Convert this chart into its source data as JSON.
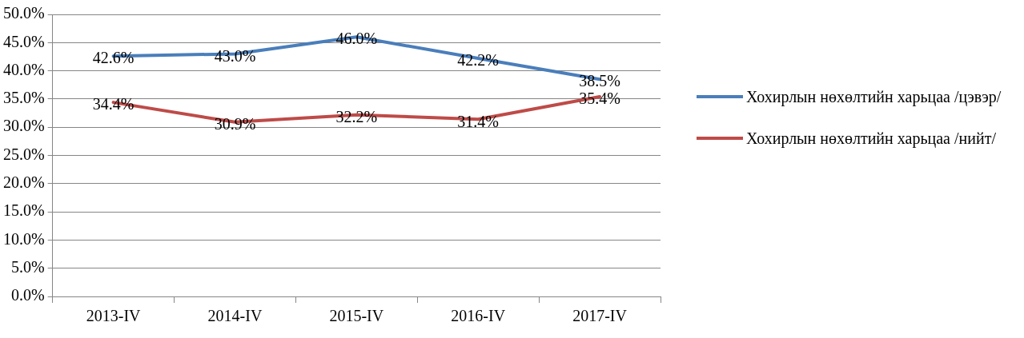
{
  "chart_data": {
    "type": "line",
    "categories": [
      "2013-IV",
      "2014-IV",
      "2015-IV",
      "2016-IV",
      "2017-IV"
    ],
    "series": [
      {
        "name": "Хохирлын нөхөлтийн харьцаа /цэвэр/",
        "color": "#4a7ebb",
        "values": [
          42.6,
          43.0,
          46.0,
          42.2,
          38.5
        ],
        "value_labels": [
          "42.6%",
          "43.0%",
          "46.0%",
          "42.2%",
          "38.5%"
        ]
      },
      {
        "name": "Хохирлын нөхөлтийн харьцаа /нийт/",
        "color": "#be4b48",
        "values": [
          34.4,
          30.9,
          32.2,
          31.4,
          35.4
        ],
        "value_labels": [
          "34.4%",
          "30.9%",
          "32.2%",
          "31.4%",
          "35.4%"
        ]
      }
    ],
    "ylim": [
      0,
      50
    ],
    "yticks": [
      {
        "value": 0,
        "label": "0.0%"
      },
      {
        "value": 5,
        "label": "5.0%"
      },
      {
        "value": 10,
        "label": "10.0%"
      },
      {
        "value": 15,
        "label": "15.0%"
      },
      {
        "value": 20,
        "label": "20.0%"
      },
      {
        "value": 25,
        "label": "25.0%"
      },
      {
        "value": 30,
        "label": "30.0%"
      },
      {
        "value": 35,
        "label": "35.0%"
      },
      {
        "value": 40,
        "label": "40.0%"
      },
      {
        "value": 45,
        "label": "45.0%"
      },
      {
        "value": 50,
        "label": "50.0%"
      }
    ],
    "grid": "y",
    "legend": "right",
    "marker": "none",
    "line_style": "solid"
  }
}
